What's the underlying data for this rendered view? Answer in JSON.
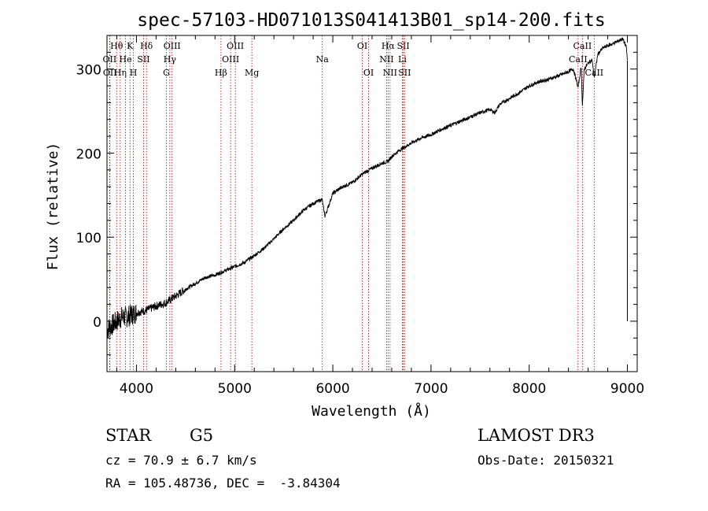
{
  "chart_data": {
    "type": "line",
    "title": "spec-57103-HD071013S041413B01_sp14-200.fits",
    "xlabel": "Wavelength (Å)",
    "ylabel": "Flux (relative)",
    "xlim": [
      3700,
      9100
    ],
    "ylim": [
      -60,
      340
    ],
    "x_ticks": [
      4000,
      5000,
      6000,
      7000,
      8000,
      9000
    ],
    "x_tick_labels": [
      "4000",
      "5000",
      "6000",
      "7000",
      "8000",
      "9000"
    ],
    "y_ticks": [
      0,
      100,
      200,
      300
    ],
    "y_tick_labels": [
      "0",
      "100",
      "200",
      "300"
    ],
    "grid": false,
    "series": [
      {
        "name": "flux",
        "x": [
          3700,
          3750,
          3800,
          3850,
          3900,
          3950,
          4000,
          4100,
          4200,
          4300,
          4400,
          4500,
          4600,
          4700,
          4800,
          4900,
          5000,
          5100,
          5200,
          5300,
          5400,
          5500,
          5600,
          5700,
          5800,
          5890,
          5920,
          6000,
          6100,
          6200,
          6300,
          6400,
          6500,
          6560,
          6600,
          6700,
          6800,
          6900,
          7000,
          7100,
          7200,
          7300,
          7400,
          7500,
          7600,
          7650,
          7700,
          7800,
          7900,
          8000,
          8100,
          8200,
          8300,
          8400,
          8450,
          8498,
          8530,
          8542,
          8560,
          8600,
          8640,
          8662,
          8700,
          8750,
          8800,
          8850,
          8900,
          8950,
          8970,
          8990,
          9000
        ],
        "y": [
          -10,
          -5,
          0,
          5,
          5,
          8,
          10,
          13,
          18,
          22,
          30,
          38,
          45,
          52,
          55,
          60,
          65,
          70,
          78,
          87,
          98,
          110,
          120,
          132,
          140,
          145,
          125,
          152,
          160,
          165,
          175,
          182,
          188,
          190,
          196,
          205,
          212,
          218,
          222,
          228,
          233,
          238,
          243,
          248,
          252,
          248,
          258,
          265,
          272,
          280,
          285,
          288,
          292,
          297,
          300,
          278,
          303,
          255,
          300,
          307,
          311,
          290,
          318,
          325,
          328,
          330,
          333,
          336,
          332,
          325,
          310
        ]
      }
    ],
    "lines": [
      {
        "name": "Hθ",
        "x": 3798,
        "row": 1
      },
      {
        "name": "OII",
        "x": 3727,
        "row": 2
      },
      {
        "name": "OII",
        "x": 3730,
        "row": 3
      },
      {
        "name": "Hη",
        "x": 3835,
        "row": 3
      },
      {
        "name": "K",
        "x": 3934,
        "row": 1
      },
      {
        "name": "He",
        "x": 3889,
        "row": 2
      },
      {
        "name": "H",
        "x": 3969,
        "row": 3
      },
      {
        "name": "Hδ",
        "x": 4102,
        "row": 1
      },
      {
        "name": "SII",
        "x": 4072,
        "row": 2
      },
      {
        "name": "OIII",
        "x": 4363,
        "row": 1
      },
      {
        "name": "Hγ",
        "x": 4340,
        "row": 2
      },
      {
        "name": "G",
        "x": 4305,
        "row": 3
      },
      {
        "name": "Hβ",
        "x": 4861,
        "row": 3
      },
      {
        "name": "OIII",
        "x": 5007,
        "row": 1
      },
      {
        "name": "OIII",
        "x": 4959,
        "row": 2
      },
      {
        "name": "Mg",
        "x": 5175,
        "row": 3
      },
      {
        "name": "Na",
        "x": 5893,
        "row": 2
      },
      {
        "name": "OI",
        "x": 6300,
        "row": 1
      },
      {
        "name": "OI",
        "x": 6364,
        "row": 3
      },
      {
        "name": "Hα",
        "x": 6563,
        "row": 1
      },
      {
        "name": "NII",
        "x": 6548,
        "row": 2
      },
      {
        "name": "NII",
        "x": 6583,
        "row": 3
      },
      {
        "name": "SII",
        "x": 6717,
        "row": 1
      },
      {
        "name": "Li",
        "x": 6708,
        "row": 2
      },
      {
        "name": "SII",
        "x": 6731,
        "row": 3
      },
      {
        "name": "CaII",
        "x": 8542,
        "row": 1
      },
      {
        "name": "CaII",
        "x": 8498,
        "row": 2
      },
      {
        "name": "CaII",
        "x": 8662,
        "row": 3
      }
    ],
    "line_color": "#c00000"
  },
  "info": {
    "object_type": "STAR",
    "subclass": "G5",
    "survey": "LAMOST DR3",
    "cz": "cz = 70.9 ± 6.7 km/s",
    "obs_date": "Obs-Date: 20150321",
    "coords": "RA = 105.48736, DEC =  -3.84304"
  }
}
